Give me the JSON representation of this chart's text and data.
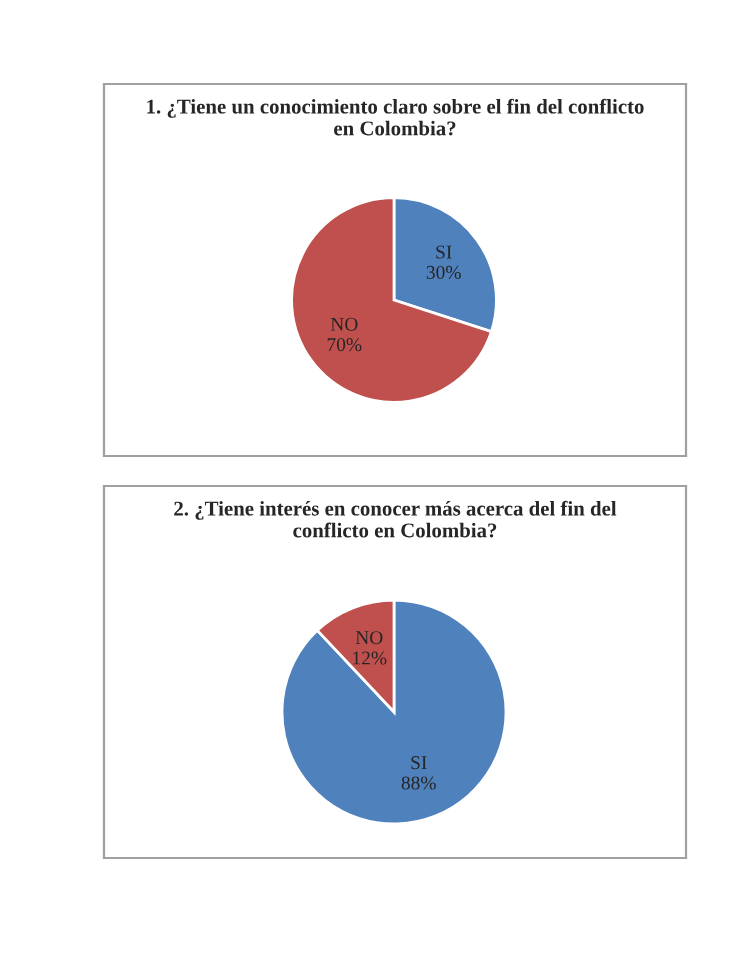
{
  "chart_data": [
    {
      "type": "pie",
      "title": "1. ¿Tiene un conocimiento claro sobre el fin del conflicto en Colombia?",
      "categories": [
        "SI",
        "NO"
      ],
      "values": [
        30,
        70
      ],
      "value_labels": [
        "30%",
        "70%"
      ],
      "colors": [
        "#4f81bd",
        "#c0504d"
      ],
      "legend": false
    },
    {
      "type": "pie",
      "title": "2. ¿Tiene interés en conocer más acerca del fin del conflicto en Colombia?",
      "categories": [
        "SI",
        "NO"
      ],
      "values": [
        88,
        12
      ],
      "value_labels": [
        "88%",
        "12%"
      ],
      "colors": [
        "#4f81bd",
        "#c0504d"
      ],
      "legend": false
    }
  ]
}
